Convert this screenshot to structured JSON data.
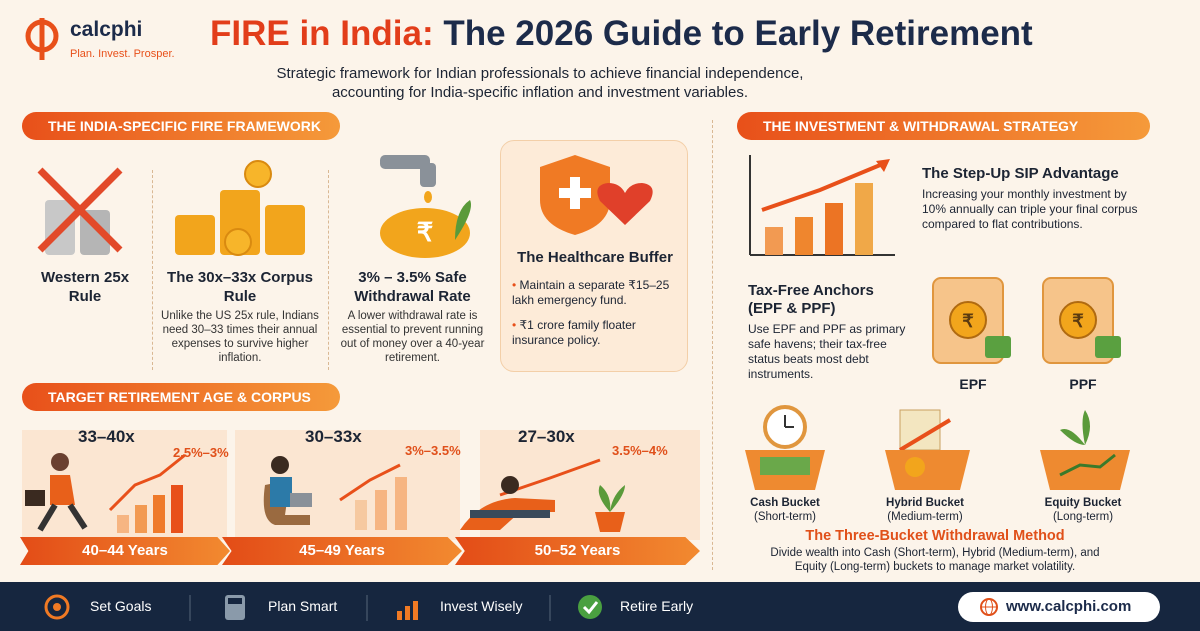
{
  "brand": {
    "name": "calcphi",
    "tagline": "Plan. Invest. Prosper."
  },
  "header": {
    "title_highlight": "FIRE in India:",
    "title_rest": "The 2026 Guide to Early Retirement",
    "subtitle": [
      "Strategic framework for Indian professionals to achieve financial independence,",
      "accounting for India-specific inflation and investment variables."
    ]
  },
  "framework": {
    "heading": "THE INDIA-SPECIFIC FIRE FRAMEWORK",
    "items": [
      {
        "title": "Western 25x Rule"
      },
      {
        "title": "The 30x–33x Corpus Rule",
        "text": "Unlike the US 25x rule, Indians need 30–33 times their annual expenses to survive higher inflation."
      },
      {
        "title": "3% – 3.5% Safe Withdrawal Rate",
        "text": "A lower withdrawal rate is essential to prevent running out of money over a 40-year retirement."
      }
    ],
    "healthcare": {
      "title": "The Healthcare Buffer",
      "bullets": [
        "Maintain a separate ₹15–25 lakh emergency fund.",
        "₹1 crore family floater insurance policy."
      ]
    }
  },
  "target": {
    "heading": "TARGET RETIREMENT AGE & CORPUS",
    "stages": [
      {
        "multiple": "33–40x",
        "rate": "2.5%–3%",
        "age": "40–44 Years"
      },
      {
        "multiple": "30–33x",
        "rate": "3%–3.5%",
        "age": "45–49 Years"
      },
      {
        "multiple": "27–30x",
        "rate": "3.5%–4%",
        "age": "50–52 Years"
      }
    ]
  },
  "strategy": {
    "heading": "THE INVESTMENT & WITHDRAWAL STRATEGY",
    "sip": {
      "title": "The Step-Up SIP Advantage",
      "text": "Increasing your monthly investment by 10% annually can triple your final corpus compared to flat contributions."
    },
    "tax": {
      "title": "Tax-Free Anchors (EPF & PPF)",
      "text": "Use EPF and PPF as primary safe havens; their tax-free status beats most debt instruments.",
      "labels": [
        "EPF",
        "PPF"
      ]
    },
    "buckets": [
      {
        "name": "Cash Bucket",
        "term": "(Short-term)"
      },
      {
        "name": "Hybrid Bucket",
        "term": "(Medium-term)"
      },
      {
        "name": "Equity Bucket",
        "term": "(Long-term)"
      }
    ],
    "method": {
      "title": "The Three-Bucket Withdrawal Method",
      "text": "Divide wealth into Cash (Short-term), Hybrid (Medium-term), and Equity (Long-term) buckets to manage market volatility."
    }
  },
  "footer": {
    "items": [
      "Set Goals",
      "Plan Smart",
      "Invest Wisely",
      "Retire Early"
    ],
    "website": "www.calcphi.com"
  }
}
